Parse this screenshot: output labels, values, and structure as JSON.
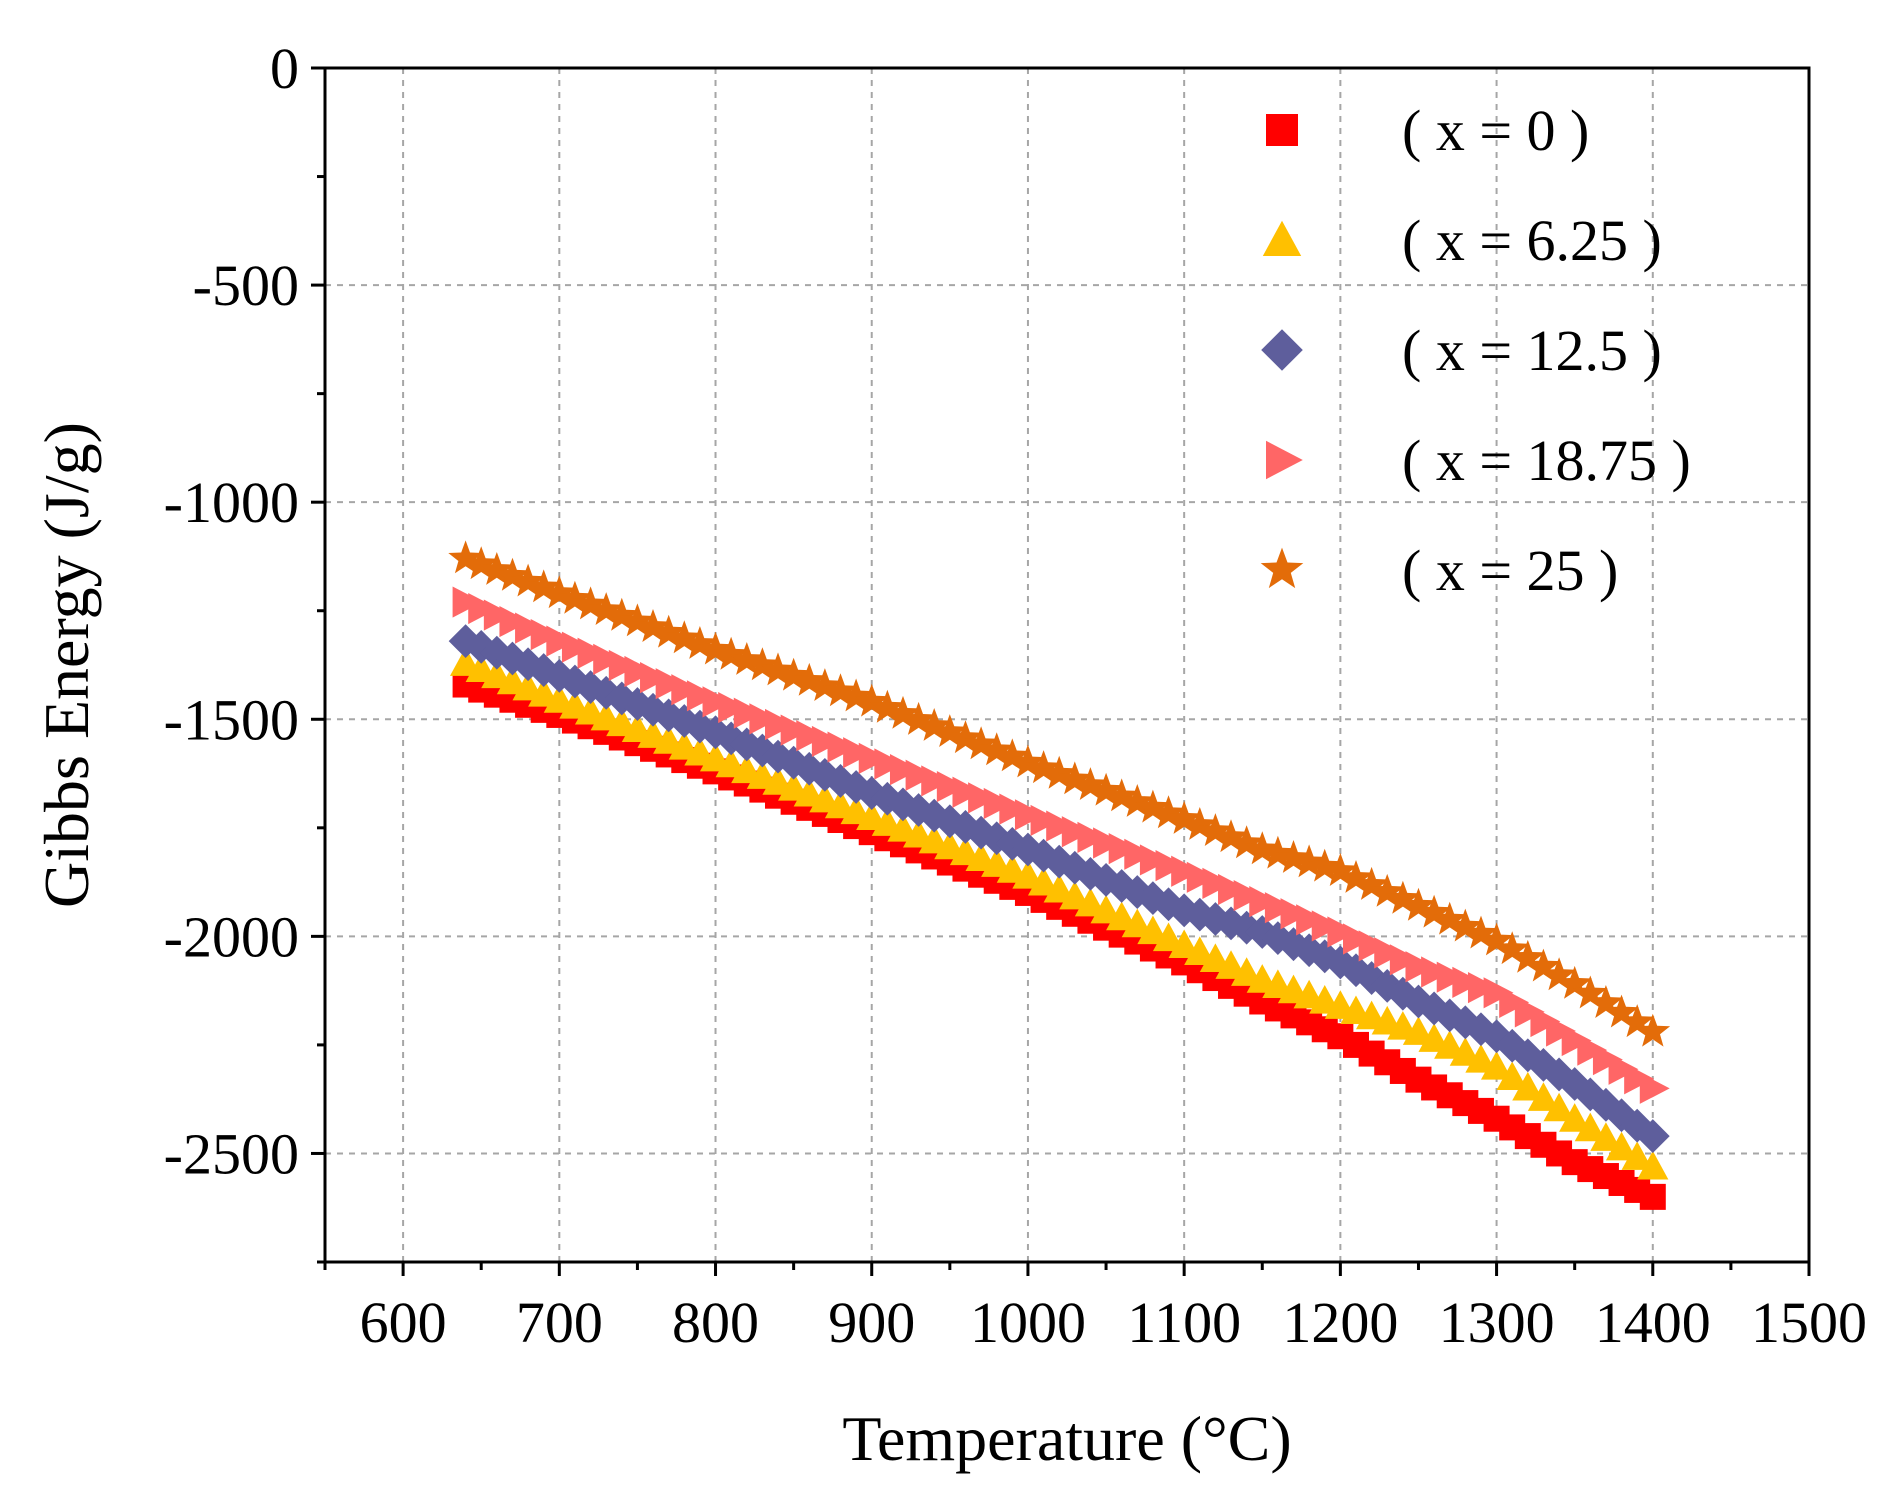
{
  "chart_data": {
    "type": "scatter",
    "title": "",
    "xlabel": "Temperature (°C)",
    "ylabel": "Gibbs Energy (J/g)",
    "xlim": [
      550,
      1500
    ],
    "ylim": [
      -2750,
      0
    ],
    "xticks": [
      600,
      700,
      800,
      900,
      1000,
      1100,
      1200,
      1300,
      1400,
      1500
    ],
    "yticks": [
      0,
      -500,
      -1000,
      -1500,
      -2000,
      -2500
    ],
    "grid": true,
    "legend_position": "top-right",
    "series": [
      {
        "name": "( x = 0 )",
        "marker": "square",
        "color": "#ff0000",
        "x": [
          640,
          700,
          800,
          900,
          1000,
          1100,
          1150,
          1200,
          1250,
          1300,
          1350,
          1400
        ],
        "values": [
          -1420,
          -1490,
          -1620,
          -1760,
          -1900,
          -2060,
          -2150,
          -2230,
          -2330,
          -2420,
          -2520,
          -2600
        ]
      },
      {
        "name": "( x = 6.25 )",
        "marker": "triangle-up",
        "color": "#ffc000",
        "x": [
          640,
          700,
          800,
          900,
          1000,
          1100,
          1150,
          1200,
          1250,
          1300,
          1350,
          1400
        ],
        "values": [
          -1370,
          -1455,
          -1590,
          -1725,
          -1860,
          -2020,
          -2100,
          -2160,
          -2220,
          -2300,
          -2420,
          -2530
        ]
      },
      {
        "name": "( x = 12.5 )",
        "marker": "diamond",
        "color": "#5e5e9c",
        "x": [
          640,
          700,
          800,
          900,
          1000,
          1100,
          1150,
          1200,
          1250,
          1300,
          1350,
          1400
        ],
        "values": [
          -1320,
          -1400,
          -1530,
          -1670,
          -1800,
          -1940,
          -1990,
          -2060,
          -2150,
          -2230,
          -2340,
          -2460
        ]
      },
      {
        "name": "( x = 18.75 )",
        "marker": "triangle-right",
        "color": "#ff6666",
        "x": [
          640,
          700,
          800,
          900,
          1000,
          1100,
          1150,
          1200,
          1250,
          1300,
          1350,
          1400
        ],
        "values": [
          -1230,
          -1320,
          -1460,
          -1590,
          -1720,
          -1850,
          -1920,
          -1990,
          -2070,
          -2130,
          -2240,
          -2350
        ]
      },
      {
        "name": "( x = 25 )",
        "marker": "star",
        "color": "#e36c09",
        "x": [
          640,
          700,
          800,
          900,
          1000,
          1100,
          1150,
          1200,
          1250,
          1300,
          1350,
          1400
        ],
        "values": [
          -1130,
          -1210,
          -1340,
          -1460,
          -1600,
          -1730,
          -1800,
          -1850,
          -1930,
          -2010,
          -2110,
          -2220
        ]
      }
    ]
  }
}
